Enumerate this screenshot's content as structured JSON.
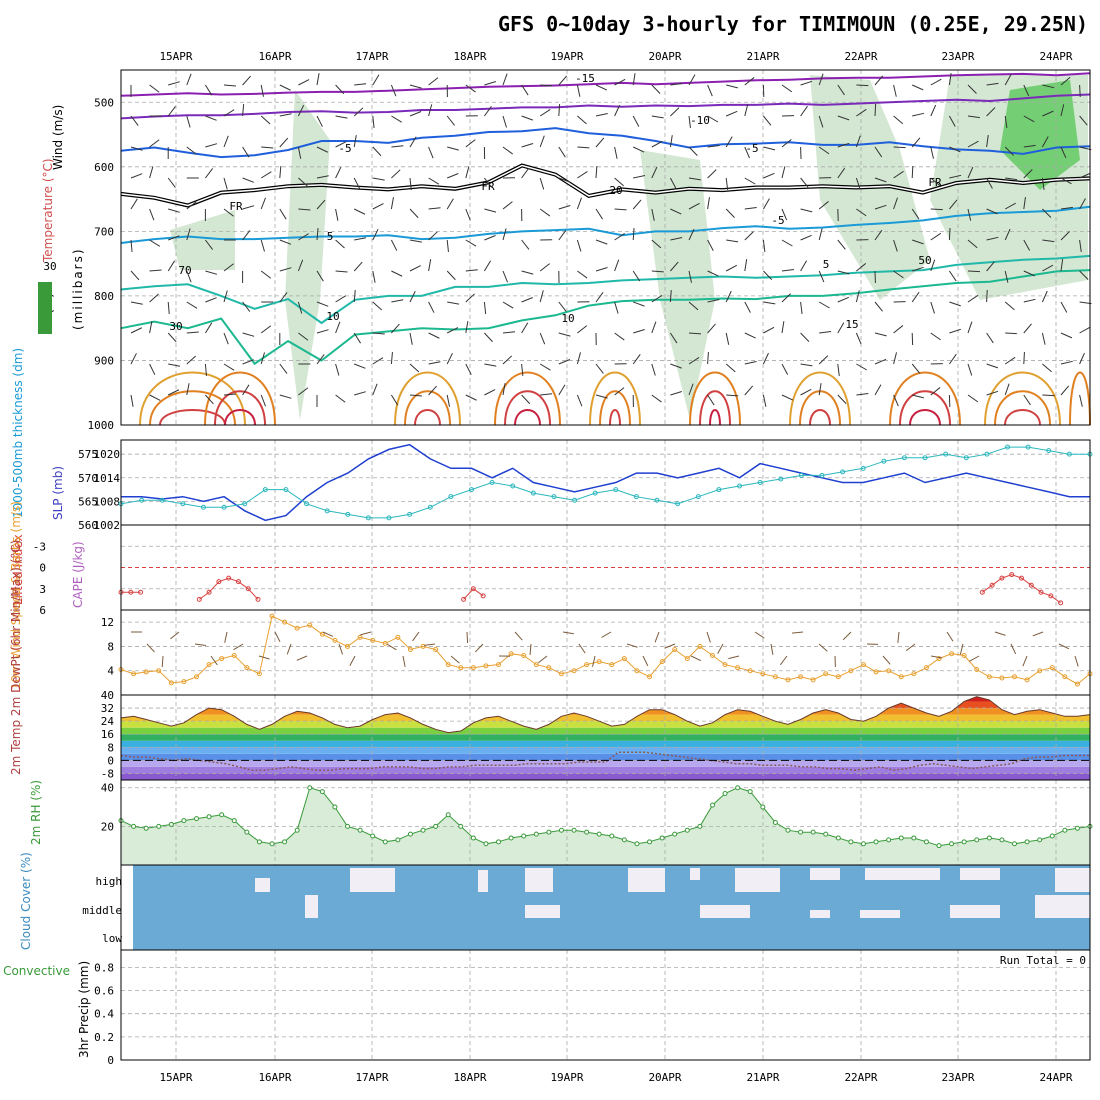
{
  "title": "GFS 0~10day 3-hourly for TIMIMOUN (0.25E, 29.25N)",
  "days": [
    "15APR",
    "16APR",
    "17APR",
    "18APR",
    "19APR",
    "20APR",
    "21APR",
    "22APR",
    "23APR",
    "24APR"
  ],
  "run_total_label": "Run Total = 0",
  "colors": {
    "rh": "#a8d0a8",
    "blue_line": "#1f3fd0",
    "cyan_line": "#2ab7bd",
    "lifted": "#d94040",
    "speed": "#e8a030",
    "rh2m": "#3a9a3a",
    "cloud": "#6aaad4",
    "cloud_clear": "#f2eef6"
  },
  "chart_data": [
    {
      "type": "line",
      "name": "upper-air",
      "title": "Temperature (°C) Wind (m/s)",
      "ylabel": "millibars",
      "yticks": [
        500,
        600,
        700,
        800,
        900,
        1000
      ],
      "ylim": [
        450,
        1000
      ],
      "side_labels": [
        "Wind (m/s)",
        "Temperature (°C)",
        "RH (%)",
        "(millibars)"
      ],
      "isotherm_labels": [
        "-15",
        "-10",
        "-5",
        "-5",
        "FR",
        "FR",
        "FR",
        "-5",
        "5",
        "5",
        "10",
        "10",
        "15",
        "20",
        "30",
        "30",
        "50",
        "70"
      ],
      "series": [
        {
          "name": "-15",
          "pressure": [
            490,
            488,
            486,
            488,
            487,
            485,
            484,
            484,
            482,
            480,
            478,
            476,
            475,
            474,
            472,
            470,
            472,
            470,
            468,
            466,
            465,
            463,
            462,
            462,
            460,
            458,
            457,
            456,
            458,
            455
          ]
        },
        {
          "name": "-10",
          "pressure": [
            525,
            522,
            520,
            520,
            518,
            515,
            514,
            516,
            515,
            512,
            512,
            510,
            508,
            508,
            505,
            507,
            505,
            506,
            504,
            504,
            502,
            504,
            502,
            500,
            498,
            496,
            498,
            494,
            490,
            488
          ]
        },
        {
          "name": "-5",
          "pressure": [
            575,
            570,
            578,
            585,
            582,
            574,
            560,
            560,
            563,
            555,
            552,
            546,
            545,
            540,
            548,
            552,
            560,
            570,
            565,
            564,
            562,
            566,
            566,
            562,
            568,
            573,
            575,
            580,
            570,
            568
          ]
        },
        {
          "name": "FR",
          "pressure": [
            642,
            648,
            660,
            640,
            636,
            630,
            628,
            632,
            635,
            630,
            634,
            624,
            598,
            612,
            645,
            635,
            640,
            634,
            636,
            632,
            632,
            630,
            632,
            630,
            640,
            625,
            620,
            625,
            620,
            618
          ]
        },
        {
          "name": "5",
          "pressure": [
            718,
            712,
            708,
            712,
            712,
            710,
            708,
            708,
            706,
            712,
            710,
            704,
            700,
            698,
            696,
            706,
            700,
            700,
            695,
            692,
            696,
            694,
            690,
            687,
            683,
            676,
            672,
            670,
            668,
            662
          ]
        },
        {
          "name": "10",
          "pressure": [
            790,
            785,
            782,
            800,
            820,
            805,
            842,
            806,
            800,
            800,
            786,
            786,
            780,
            782,
            780,
            776,
            774,
            772,
            770,
            772,
            770,
            768,
            764,
            762,
            760,
            752,
            748,
            744,
            742,
            738
          ]
        },
        {
          "name": "15",
          "pressure": [
            850,
            840,
            850,
            835,
            905,
            870,
            900,
            860,
            855,
            850,
            852,
            850,
            838,
            830,
            815,
            808,
            806,
            806,
            804,
            805,
            800,
            800,
            796,
            790,
            785,
            780,
            778,
            770,
            762,
            760
          ]
        }
      ]
    },
    {
      "type": "line",
      "name": "thickness-slp",
      "ylabel_left": "1000-500mb thickness (dm)",
      "ylabel_right": "SLP (mb)",
      "yticks_left": [
        560,
        565,
        570,
        575
      ],
      "yticks_right": [
        1002,
        1008,
        1014,
        1020
      ],
      "ylim_left": [
        560,
        578
      ],
      "series": [
        {
          "name": "thickness",
          "values": [
            566,
            566,
            565.5,
            566,
            565,
            566,
            563,
            561,
            562,
            566,
            569,
            571,
            574,
            576,
            577,
            574,
            572,
            572,
            570,
            572,
            569,
            568,
            567,
            568,
            569,
            571,
            571,
            570,
            571,
            572,
            570,
            573,
            572,
            571,
            570,
            569,
            569,
            570,
            571,
            569,
            570,
            571,
            570,
            569,
            568,
            567,
            566,
            566
          ]
        },
        {
          "name": "slp",
          "values": [
            1006,
            1007,
            1007,
            1006,
            1005,
            1005,
            1006,
            1010,
            1010,
            1006,
            1004,
            1003,
            1002,
            1002,
            1003,
            1005,
            1008,
            1010,
            1012,
            1011,
            1009,
            1008,
            1007,
            1009,
            1010,
            1008,
            1007,
            1006,
            1008,
            1010,
            1011,
            1012,
            1013,
            1014,
            1014,
            1015,
            1016,
            1018,
            1019,
            1019,
            1020,
            1019,
            1020,
            1022,
            1022,
            1021,
            1020,
            1020
          ]
        }
      ]
    },
    {
      "type": "line",
      "name": "lifted-index-cape",
      "ylabel_left": "Lifted Index",
      "ylabel_right": "CAPE (J/kg)",
      "yticks": [
        -3,
        0,
        3,
        6
      ],
      "ylim": [
        -6,
        6
      ],
      "series": [
        {
          "name": "lifted",
          "x": [
            0,
            1,
            2,
            8,
            9,
            10,
            11,
            12,
            13,
            14,
            35,
            36,
            37,
            88,
            89,
            90,
            91,
            92,
            93,
            94,
            95,
            96
          ],
          "values": [
            3.5,
            3.5,
            3.5,
            4.5,
            3.5,
            2.0,
            1.5,
            2.0,
            3.0,
            4.5,
            4.5,
            3.0,
            4.0,
            3.5,
            2.5,
            1.5,
            1.0,
            1.5,
            2.5,
            3.5,
            4.0,
            5.0
          ]
        }
      ]
    },
    {
      "type": "line",
      "name": "10m-wind",
      "ylabel": "10m Wind Speed & Barbs (m/s)",
      "yticks": [
        4,
        8,
        12
      ],
      "ylim": [
        0,
        14
      ],
      "series": [
        {
          "name": "speed",
          "values": [
            4.2,
            3.5,
            3.8,
            4.0,
            2.0,
            2.2,
            3.0,
            5.0,
            6.0,
            6.5,
            4.5,
            3.5,
            13.0,
            12.0,
            11.0,
            11.5,
            10.0,
            9.0,
            8.0,
            9.5,
            9.0,
            8.5,
            9.5,
            7.5,
            8.0,
            7.5,
            5.0,
            4.5,
            4.5,
            4.8,
            5.0,
            6.8,
            6.5,
            5.0,
            4.5,
            3.5,
            4.0,
            5.0,
            5.5,
            5.0,
            6.0,
            4.0,
            3.0,
            5.5,
            7.5,
            6.0,
            8.0,
            6.5,
            5.0,
            4.5,
            4.0,
            3.5,
            3.0,
            2.5,
            3.0,
            2.5,
            3.5,
            3.0,
            4.0,
            5.0,
            3.8,
            4.0,
            3.0,
            3.5,
            4.5,
            6.0,
            6.8,
            6.5,
            4.2,
            3.0,
            2.8,
            3.0,
            2.5,
            4.0,
            4.5,
            3.0,
            1.8,
            3.5
          ]
        }
      ]
    },
    {
      "type": "area",
      "name": "2m-temp-dewpt",
      "ylabel": "2m Temp 2m DewPt (6hr Min/Max) (°C)",
      "yticks": [
        -8,
        0,
        8,
        16,
        24,
        32,
        40
      ],
      "ylim": [
        -12,
        40
      ],
      "series": [
        {
          "name": "temp",
          "values": [
            26,
            27,
            25,
            23,
            21,
            23,
            28,
            32,
            31,
            27,
            22,
            19,
            22,
            27,
            30,
            29,
            26,
            22,
            20,
            21,
            25,
            28,
            29,
            26,
            22,
            19,
            17,
            18,
            23,
            26,
            27,
            24,
            21,
            19,
            22,
            27,
            29,
            27,
            24,
            21,
            22,
            27,
            31,
            31,
            28,
            24,
            21,
            23,
            28,
            31,
            30,
            27,
            24,
            22,
            25,
            29,
            31,
            29,
            25,
            24,
            27,
            32,
            35,
            32,
            29,
            27,
            30,
            36,
            39,
            37,
            31,
            28,
            30,
            31,
            29,
            27,
            27,
            28
          ]
        },
        {
          "name": "dewpt",
          "values": [
            3,
            2,
            2,
            1,
            0,
            1,
            0,
            -1,
            -2,
            -4,
            -6,
            -6,
            -5,
            -4,
            -5,
            -6,
            -6,
            -5,
            -5,
            -5,
            -4,
            -4,
            -4,
            -5,
            -5,
            -4,
            -4,
            -3,
            -3,
            -3,
            -3,
            -2,
            -2,
            -2,
            -2,
            -1,
            -1,
            -1,
            5,
            5,
            5,
            4,
            3,
            2,
            1,
            0,
            -1,
            -2,
            -2,
            -3,
            -3,
            -3,
            -4,
            -4,
            -5,
            -5,
            -6,
            -5,
            -4,
            -6,
            -5,
            -3,
            -2,
            -3,
            -4,
            -5,
            -4,
            -3,
            -2,
            1,
            2,
            2,
            3,
            3,
            3
          ]
        }
      ]
    },
    {
      "type": "area",
      "name": "2m-rh",
      "ylabel": "2m RH (%)",
      "yticks": [
        20,
        40
      ],
      "ylim": [
        0,
        44
      ],
      "series": [
        {
          "name": "rh",
          "values": [
            23,
            20,
            19,
            20,
            21,
            23,
            24,
            25,
            26,
            23,
            17,
            12,
            11,
            12,
            18,
            40,
            38,
            30,
            20,
            18,
            15,
            12,
            13,
            16,
            18,
            20,
            26,
            20,
            14,
            11,
            12,
            14,
            15,
            16,
            17,
            18,
            18,
            17,
            16,
            15,
            13,
            11,
            12,
            14,
            16,
            18,
            20,
            31,
            37,
            40,
            38,
            30,
            22,
            18,
            17,
            17,
            16,
            14,
            12,
            11,
            12,
            13,
            14,
            14,
            12,
            10,
            11,
            12,
            13,
            14,
            13,
            11,
            12,
            13,
            15,
            18,
            19,
            20
          ]
        }
      ]
    },
    {
      "type": "heatmap",
      "name": "cloud-cover",
      "ylabel": "Cloud Cover (%)",
      "levels": [
        "high",
        "middle",
        "low"
      ]
    },
    {
      "type": "bar",
      "name": "precip",
      "ylabel_left": "Total / Rain Convective",
      "ylabel": "3hr Precip (mm)",
      "yticks": [
        0,
        0.2,
        0.4,
        0.6,
        0.8
      ],
      "ylim": [
        0,
        0.95
      ],
      "values": []
    }
  ]
}
